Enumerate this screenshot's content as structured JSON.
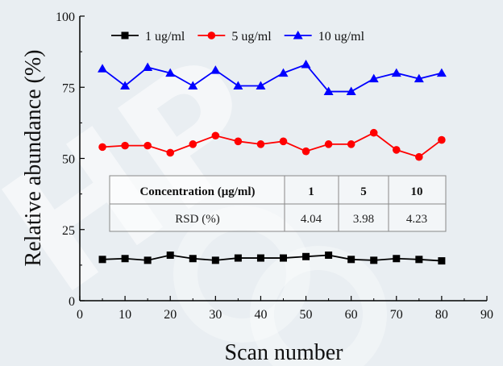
{
  "chart_data": {
    "type": "line",
    "xlabel": "Scan number",
    "ylabel": "Relative abundance (%)",
    "xlim": [
      0,
      90
    ],
    "ylim": [
      0,
      100
    ],
    "xticks": [
      0,
      10,
      20,
      30,
      40,
      50,
      60,
      70,
      80,
      90
    ],
    "yticks": [
      0,
      25,
      50,
      75,
      100
    ],
    "grid": false,
    "legend_position": "top",
    "x": [
      5,
      10,
      15,
      20,
      25,
      30,
      35,
      40,
      45,
      50,
      55,
      60,
      65,
      70,
      75,
      80
    ],
    "series": [
      {
        "name": "1 ug/ml",
        "color": "#000000",
        "marker": "square",
        "values": [
          14.5,
          14.8,
          14.2,
          16.0,
          14.8,
          14.2,
          15.0,
          15.0,
          15.0,
          15.5,
          16.0,
          14.5,
          14.2,
          14.8,
          14.5,
          14.0
        ]
      },
      {
        "name": "5 ug/ml",
        "color": "#ff0000",
        "marker": "circle",
        "values": [
          54.0,
          54.5,
          54.5,
          52.0,
          55.0,
          58.0,
          56.0,
          55.0,
          56.0,
          52.5,
          55.0,
          55.0,
          59.0,
          53.0,
          50.5,
          56.5
        ]
      },
      {
        "name": "10 ug/ml",
        "color": "#0000ff",
        "marker": "triangle",
        "values": [
          81.5,
          75.5,
          82.0,
          80.0,
          75.5,
          81.0,
          75.5,
          75.5,
          80.0,
          83.0,
          73.5,
          73.5,
          78.0,
          80.0,
          78.0,
          80.0
        ]
      }
    ],
    "inset_table": {
      "header": [
        "Concentration (μg/ml)",
        "1",
        "5",
        "10"
      ],
      "row": [
        "RSD (%)",
        "4.04",
        "3.98",
        "4.23"
      ]
    }
  }
}
